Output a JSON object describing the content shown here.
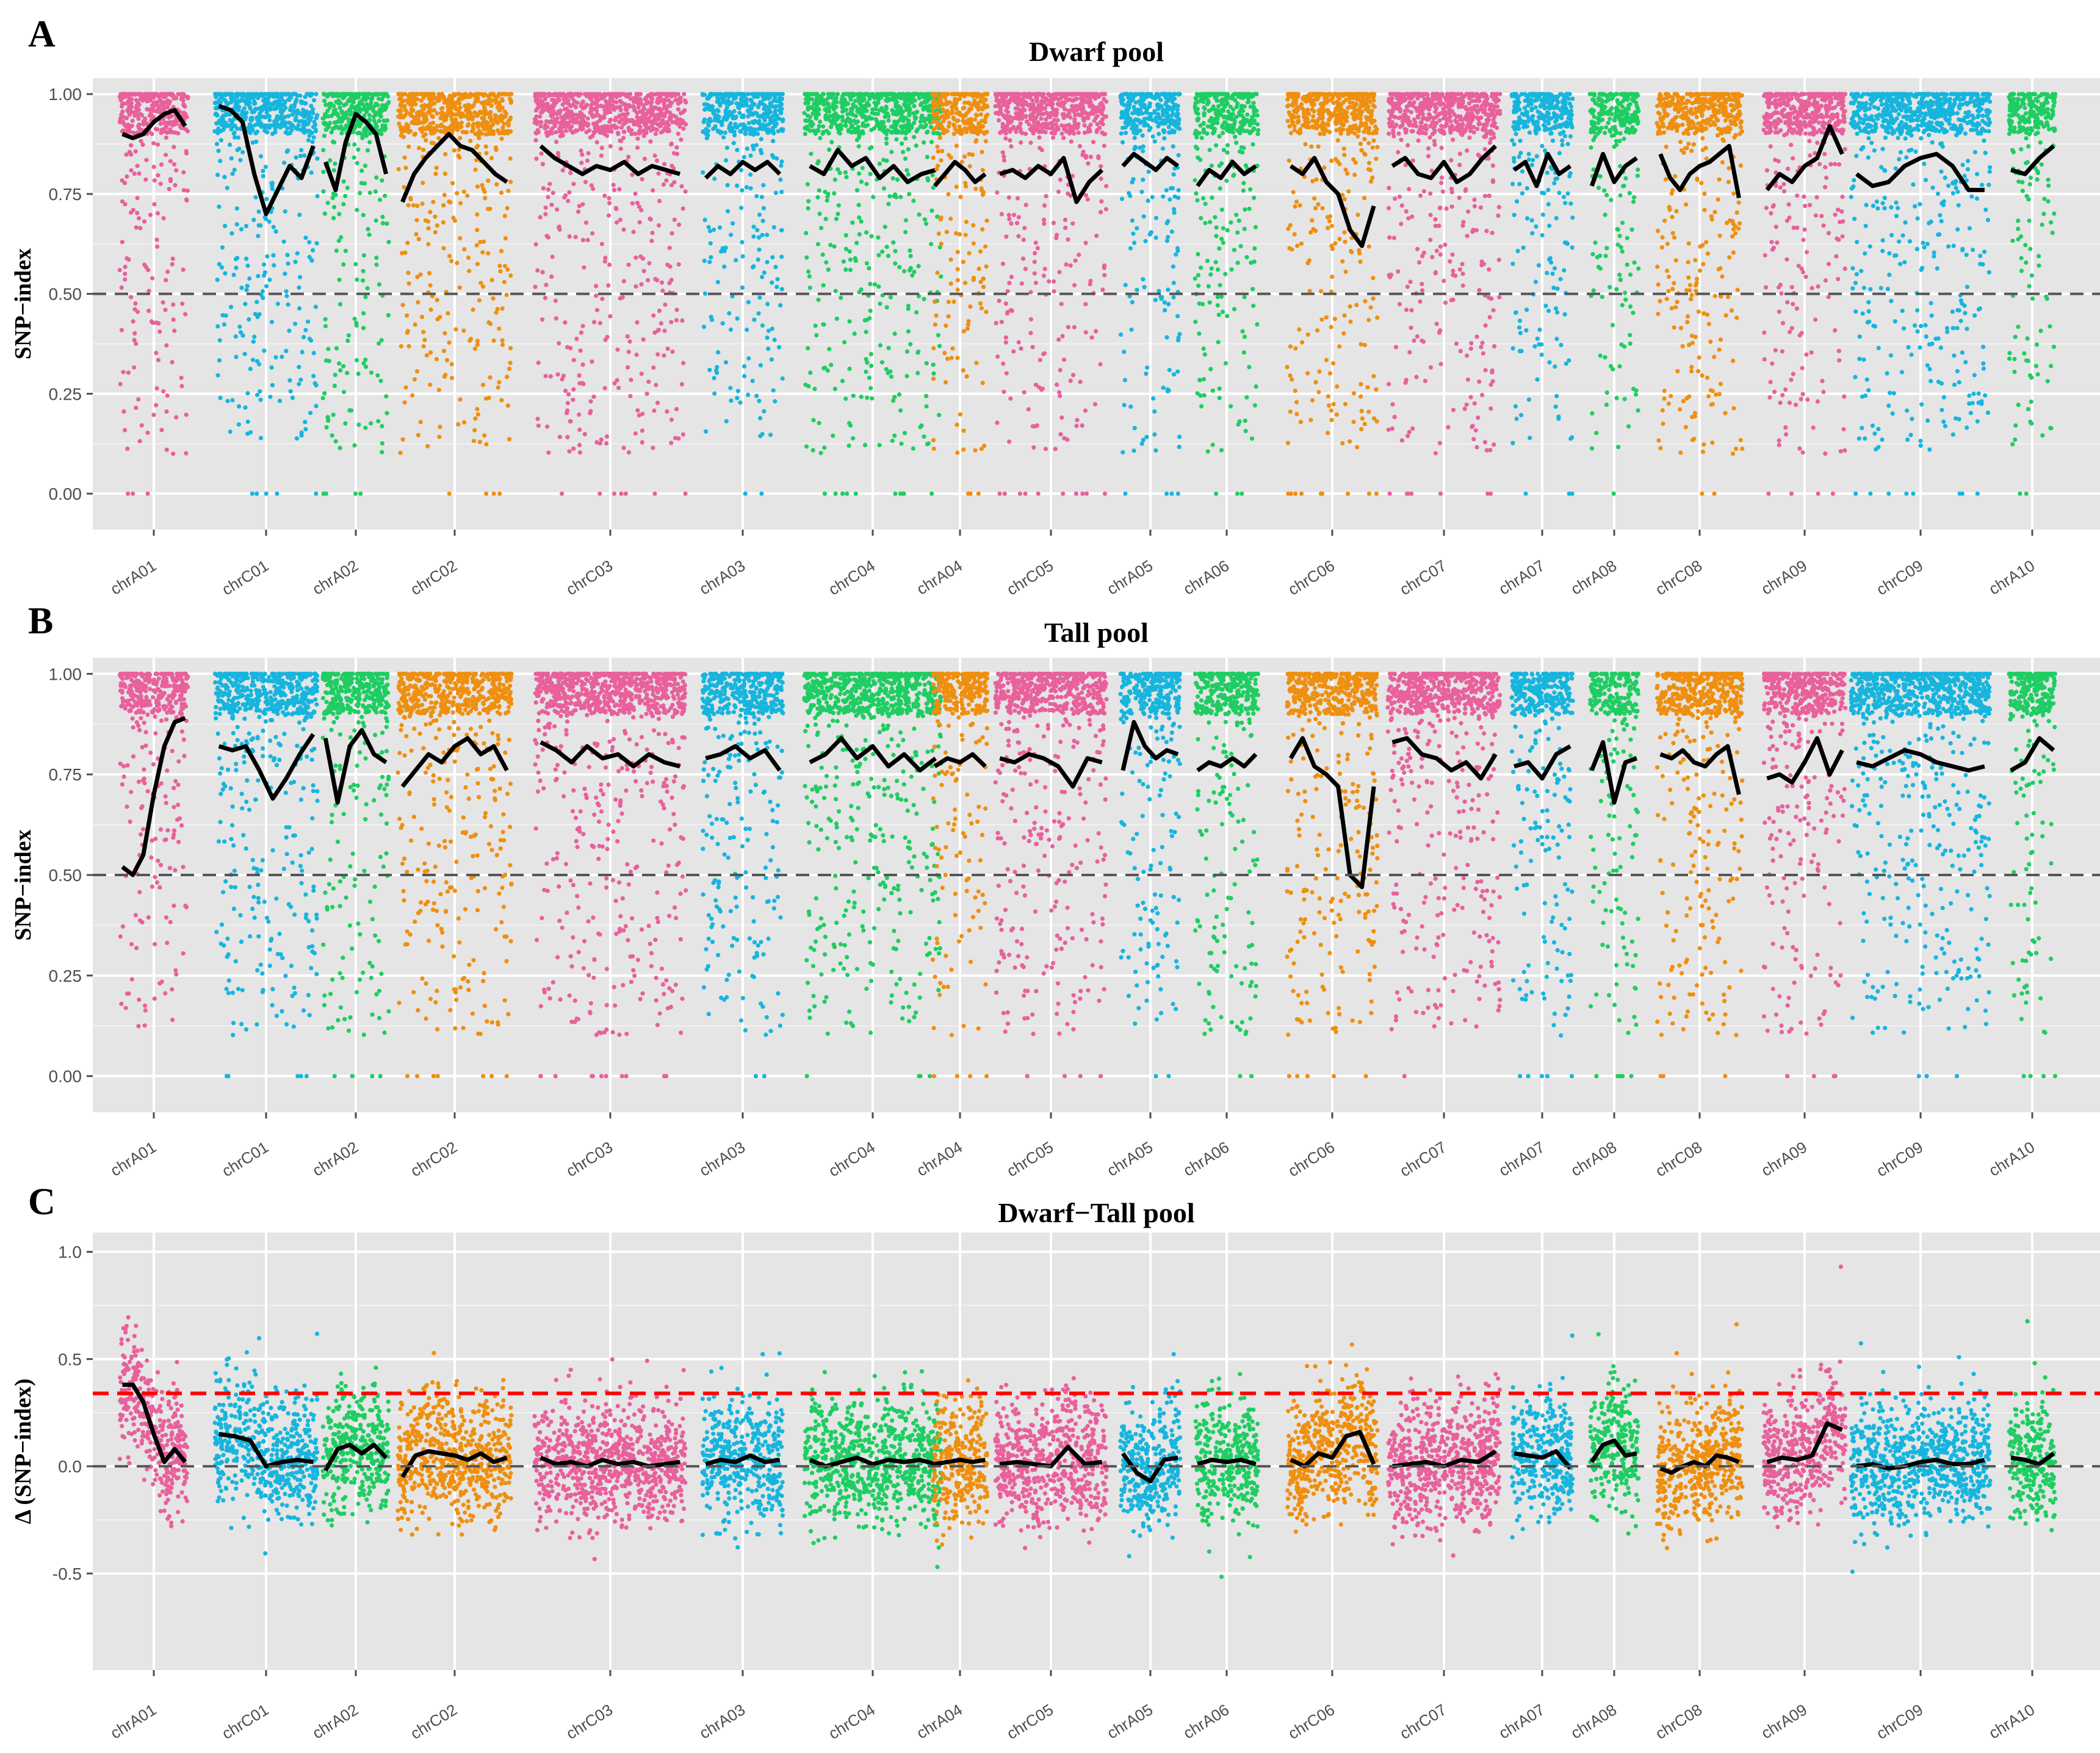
{
  "colors": {
    "panel_bg": "#e5e5e5",
    "grid_major": "#ffffff",
    "grid_minor": "#f2f2f2",
    "trend": "#000000",
    "ref_line": "#555555",
    "threshold_line": "#ff0000",
    "pink": "#e8609c",
    "blue": "#17b5dd",
    "green": "#1fcd62",
    "orange": "#ef8f10"
  },
  "chart_data": [
    {
      "type": "scatter",
      "panel": "A",
      "title": "Dwarf pool",
      "ylabel": "SNP−index",
      "ylim": [
        -0.09,
        1.04
      ],
      "yticks": [
        "0.00",
        "0.25",
        "0.50",
        "0.75",
        "1.00"
      ],
      "ytick_values": [
        0,
        0.25,
        0.5,
        0.75,
        1.0
      ],
      "reference_line": 0.5,
      "threshold_line": null,
      "chromosomes": [
        {
          "name": "chrA01",
          "color": "pink",
          "trend": [
            0.9,
            0.89,
            0.9,
            0.93,
            0.95,
            0.96,
            0.92
          ]
        },
        {
          "name": "chrC01",
          "color": "blue",
          "trend": [
            0.97,
            0.96,
            0.93,
            0.8,
            0.7,
            0.76,
            0.82,
            0.79,
            0.87
          ]
        },
        {
          "name": "chrA02",
          "color": "green",
          "trend": [
            0.83,
            0.76,
            0.88,
            0.95,
            0.93,
            0.9,
            0.8
          ]
        },
        {
          "name": "chrC02",
          "color": "orange",
          "trend": [
            0.73,
            0.8,
            0.84,
            0.87,
            0.9,
            0.87,
            0.86,
            0.83,
            0.8,
            0.78
          ]
        },
        {
          "name": "chrC03",
          "color": "pink",
          "trend": [
            0.87,
            0.84,
            0.82,
            0.8,
            0.82,
            0.81,
            0.83,
            0.8,
            0.82,
            0.81,
            0.8
          ]
        },
        {
          "name": "chrA03",
          "color": "blue",
          "trend": [
            0.79,
            0.82,
            0.8,
            0.83,
            0.81,
            0.83,
            0.8
          ]
        },
        {
          "name": "chrC04",
          "color": "green",
          "trend": [
            0.82,
            0.8,
            0.86,
            0.82,
            0.84,
            0.79,
            0.82,
            0.78,
            0.8,
            0.81
          ]
        },
        {
          "name": "chrA04",
          "color": "orange",
          "trend": [
            0.77,
            0.8,
            0.83,
            0.81,
            0.78,
            0.8
          ]
        },
        {
          "name": "chrC05",
          "color": "pink",
          "trend": [
            0.8,
            0.81,
            0.79,
            0.82,
            0.8,
            0.84,
            0.73,
            0.78,
            0.81
          ]
        },
        {
          "name": "chrA05",
          "color": "blue",
          "trend": [
            0.82,
            0.85,
            0.83,
            0.81,
            0.84,
            0.82
          ]
        },
        {
          "name": "chrA06",
          "color": "green",
          "trend": [
            0.77,
            0.81,
            0.79,
            0.83,
            0.8,
            0.82
          ]
        },
        {
          "name": "chrC06",
          "color": "orange",
          "trend": [
            0.82,
            0.8,
            0.84,
            0.78,
            0.75,
            0.66,
            0.62,
            0.72
          ]
        },
        {
          "name": "chrC07",
          "color": "pink",
          "trend": [
            0.82,
            0.84,
            0.8,
            0.79,
            0.83,
            0.78,
            0.8,
            0.84,
            0.87
          ]
        },
        {
          "name": "chrA07",
          "color": "blue",
          "trend": [
            0.81,
            0.83,
            0.77,
            0.85,
            0.8,
            0.82
          ]
        },
        {
          "name": "chrA08",
          "color": "green",
          "trend": [
            0.77,
            0.85,
            0.78,
            0.82,
            0.84
          ]
        },
        {
          "name": "chrC08",
          "color": "orange",
          "trend": [
            0.85,
            0.79,
            0.76,
            0.8,
            0.82,
            0.83,
            0.85,
            0.87,
            0.74
          ]
        },
        {
          "name": "chrA09",
          "color": "pink",
          "trend": [
            0.76,
            0.8,
            0.78,
            0.82,
            0.84,
            0.92,
            0.85
          ]
        },
        {
          "name": "chrC09",
          "color": "blue",
          "trend": [
            0.8,
            0.77,
            0.78,
            0.82,
            0.84,
            0.85,
            0.82,
            0.76,
            0.76
          ]
        },
        {
          "name": "chrA10",
          "color": "green",
          "trend": [
            0.81,
            0.8,
            0.84,
            0.87
          ]
        }
      ]
    },
    {
      "type": "scatter",
      "panel": "B",
      "title": "Tall pool",
      "ylabel": "SNP−index",
      "ylim": [
        -0.09,
        1.04
      ],
      "yticks": [
        "0.00",
        "0.25",
        "0.50",
        "0.75",
        "1.00"
      ],
      "ytick_values": [
        0,
        0.25,
        0.5,
        0.75,
        1.0
      ],
      "reference_line": 0.5,
      "threshold_line": null,
      "chromosomes": [
        {
          "name": "chrA01",
          "color": "pink",
          "trend": [
            0.52,
            0.5,
            0.55,
            0.7,
            0.82,
            0.88,
            0.89
          ]
        },
        {
          "name": "chrC01",
          "color": "blue",
          "trend": [
            0.82,
            0.81,
            0.82,
            0.76,
            0.69,
            0.74,
            0.8,
            0.85
          ]
        },
        {
          "name": "chrA02",
          "color": "green",
          "trend": [
            0.84,
            0.68,
            0.82,
            0.86,
            0.8,
            0.78
          ]
        },
        {
          "name": "chrC02",
          "color": "orange",
          "trend": [
            0.72,
            0.76,
            0.8,
            0.78,
            0.82,
            0.84,
            0.8,
            0.82,
            0.76
          ]
        },
        {
          "name": "chrC03",
          "color": "pink",
          "trend": [
            0.83,
            0.81,
            0.78,
            0.82,
            0.79,
            0.8,
            0.77,
            0.8,
            0.78,
            0.77
          ]
        },
        {
          "name": "chrA03",
          "color": "blue",
          "trend": [
            0.79,
            0.8,
            0.82,
            0.79,
            0.81,
            0.76
          ]
        },
        {
          "name": "chrC04",
          "color": "green",
          "trend": [
            0.78,
            0.8,
            0.84,
            0.79,
            0.82,
            0.77,
            0.8,
            0.76,
            0.79
          ]
        },
        {
          "name": "chrA04",
          "color": "orange",
          "trend": [
            0.77,
            0.79,
            0.78,
            0.8,
            0.77
          ]
        },
        {
          "name": "chrC05",
          "color": "pink",
          "trend": [
            0.79,
            0.78,
            0.8,
            0.79,
            0.77,
            0.72,
            0.79,
            0.78
          ]
        },
        {
          "name": "chrA05",
          "color": "blue",
          "trend": [
            0.76,
            0.88,
            0.82,
            0.79,
            0.81,
            0.8
          ]
        },
        {
          "name": "chrA06",
          "color": "green",
          "trend": [
            0.76,
            0.78,
            0.77,
            0.79,
            0.77,
            0.8
          ]
        },
        {
          "name": "chrC06",
          "color": "orange",
          "trend": [
            0.79,
            0.84,
            0.77,
            0.75,
            0.72,
            0.5,
            0.47,
            0.72
          ]
        },
        {
          "name": "chrC07",
          "color": "pink",
          "trend": [
            0.83,
            0.84,
            0.8,
            0.79,
            0.76,
            0.78,
            0.74,
            0.8
          ]
        },
        {
          "name": "chrA07",
          "color": "blue",
          "trend": [
            0.77,
            0.78,
            0.74,
            0.8,
            0.82
          ]
        },
        {
          "name": "chrA08",
          "color": "green",
          "trend": [
            0.76,
            0.83,
            0.68,
            0.78,
            0.79
          ]
        },
        {
          "name": "chrC08",
          "color": "orange",
          "trend": [
            0.8,
            0.79,
            0.81,
            0.78,
            0.77,
            0.8,
            0.82,
            0.7
          ]
        },
        {
          "name": "chrA09",
          "color": "pink",
          "trend": [
            0.74,
            0.75,
            0.73,
            0.78,
            0.84,
            0.75,
            0.81
          ]
        },
        {
          "name": "chrC09",
          "color": "blue",
          "trend": [
            0.78,
            0.77,
            0.79,
            0.81,
            0.8,
            0.78,
            0.77,
            0.76,
            0.77
          ]
        },
        {
          "name": "chrA10",
          "color": "green",
          "trend": [
            0.76,
            0.78,
            0.84,
            0.81
          ]
        }
      ]
    },
    {
      "type": "scatter",
      "panel": "C",
      "title": "Dwarf−Tall pool",
      "ylabel": "Δ (SNP−index)",
      "ylim": [
        -0.95,
        1.09
      ],
      "yticks": [
        "-0.5",
        "0.0",
        "0.5",
        "1.0"
      ],
      "ytick_values": [
        -0.5,
        0.0,
        0.5,
        1.0
      ],
      "reference_line": 0.0,
      "threshold_line": 0.34,
      "chromosomes": [
        {
          "name": "chrA01",
          "color": "pink",
          "trend": [
            0.38,
            0.38,
            0.3,
            0.15,
            0.02,
            0.08,
            0.02
          ]
        },
        {
          "name": "chrC01",
          "color": "blue",
          "trend": [
            0.15,
            0.14,
            0.12,
            0.0,
            0.02,
            0.03,
            0.02
          ]
        },
        {
          "name": "chrA02",
          "color": "green",
          "trend": [
            -0.02,
            0.08,
            0.1,
            0.06,
            0.1,
            0.04
          ]
        },
        {
          "name": "chrC02",
          "color": "orange",
          "trend": [
            -0.05,
            0.05,
            0.07,
            0.06,
            0.05,
            0.03,
            0.06,
            0.02,
            0.04
          ]
        },
        {
          "name": "chrC03",
          "color": "pink",
          "trend": [
            0.04,
            0.01,
            0.02,
            0.0,
            0.03,
            0.01,
            0.02,
            0.0,
            0.01,
            0.02
          ]
        },
        {
          "name": "chrA03",
          "color": "blue",
          "trend": [
            0.01,
            0.03,
            0.02,
            0.05,
            0.02,
            0.03
          ]
        },
        {
          "name": "chrC04",
          "color": "green",
          "trend": [
            0.03,
            0.0,
            0.02,
            0.04,
            0.01,
            0.03,
            0.02,
            0.03,
            0.01
          ]
        },
        {
          "name": "chrA04",
          "color": "orange",
          "trend": [
            0.01,
            0.02,
            0.03,
            0.02,
            0.03
          ]
        },
        {
          "name": "chrC05",
          "color": "pink",
          "trend": [
            0.01,
            0.02,
            0.01,
            0.0,
            0.09,
            0.01,
            0.02
          ]
        },
        {
          "name": "chrA05",
          "color": "blue",
          "trend": [
            0.06,
            -0.03,
            -0.07,
            0.03,
            0.04
          ]
        },
        {
          "name": "chrA06",
          "color": "green",
          "trend": [
            0.01,
            0.03,
            0.02,
            0.03,
            0.01
          ]
        },
        {
          "name": "chrC06",
          "color": "orange",
          "trend": [
            0.03,
            0.0,
            0.06,
            0.04,
            0.14,
            0.16,
            0.01
          ]
        },
        {
          "name": "chrC07",
          "color": "pink",
          "trend": [
            0.0,
            0.01,
            0.02,
            0.0,
            0.03,
            0.02,
            0.07
          ]
        },
        {
          "name": "chrA07",
          "color": "blue",
          "trend": [
            0.06,
            0.05,
            0.04,
            0.07,
            -0.01
          ]
        },
        {
          "name": "chrA08",
          "color": "green",
          "trend": [
            0.02,
            0.1,
            0.12,
            0.05,
            0.06
          ]
        },
        {
          "name": "chrC08",
          "color": "orange",
          "trend": [
            -0.01,
            -0.03,
            0.0,
            0.02,
            0.0,
            0.05,
            0.04,
            0.02
          ]
        },
        {
          "name": "chrA09",
          "color": "pink",
          "trend": [
            0.02,
            0.04,
            0.03,
            0.05,
            0.2,
            0.17
          ]
        },
        {
          "name": "chrC09",
          "color": "blue",
          "trend": [
            0.0,
            0.01,
            -0.01,
            0.0,
            0.02,
            0.03,
            0.01,
            0.01,
            0.03
          ]
        },
        {
          "name": "chrA10",
          "color": "green",
          "trend": [
            0.04,
            0.03,
            0.01,
            0.06
          ]
        }
      ]
    }
  ]
}
